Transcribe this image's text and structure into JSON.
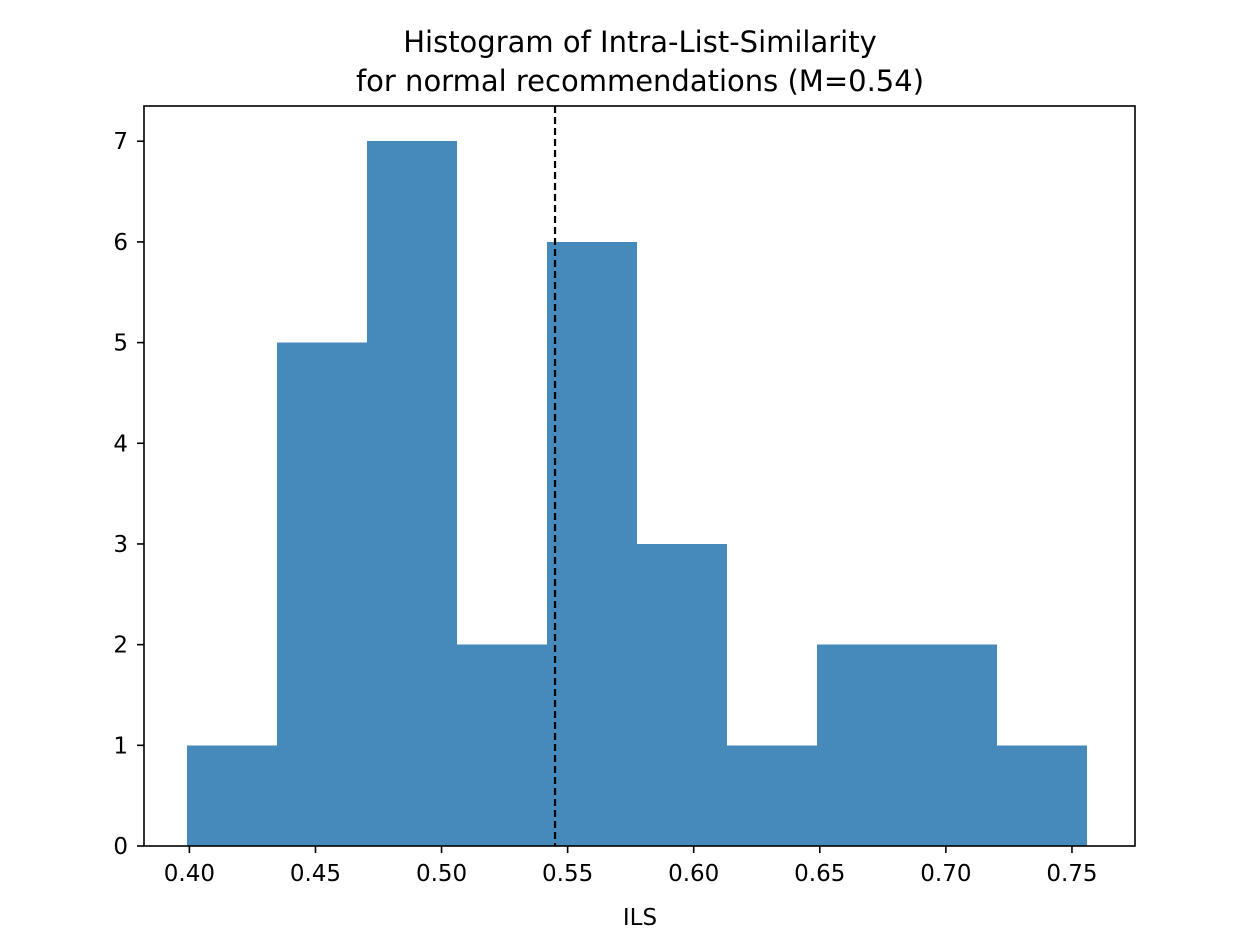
{
  "chart_data": {
    "type": "bar",
    "title_line1": "Histogram of Intra-List-Similarity",
    "title_line2": "for normal recommendations (M=0.54)",
    "xlabel": "ILS",
    "ylabel": "",
    "xlim": [
      0.382,
      0.775
    ],
    "ylim": [
      0,
      7.35
    ],
    "xticks": [
      "0.40",
      "0.45",
      "0.50",
      "0.55",
      "0.60",
      "0.65",
      "0.70",
      "0.75"
    ],
    "xtick_values": [
      0.4,
      0.45,
      0.5,
      0.55,
      0.6,
      0.65,
      0.7,
      0.75
    ],
    "yticks": [
      "0",
      "1",
      "2",
      "3",
      "4",
      "5",
      "6",
      "7"
    ],
    "ytick_values": [
      0,
      1,
      2,
      3,
      4,
      5,
      6,
      7
    ],
    "bin_edges": [
      0.399,
      0.4347,
      0.4704,
      0.5061,
      0.5418,
      0.5775,
      0.6132,
      0.6489,
      0.6846,
      0.7203,
      0.756
    ],
    "counts": [
      1,
      5,
      7,
      2,
      6,
      3,
      1,
      2,
      2,
      1
    ],
    "mean_line": 0.545,
    "bar_color": "#4689bb",
    "mean_line_color": "#000000",
    "grid": false,
    "legend": "none"
  }
}
